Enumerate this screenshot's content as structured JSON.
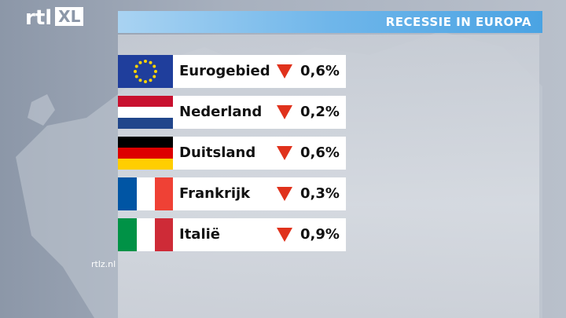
{
  "header": {
    "logo_left": "rtl",
    "logo_right": "XL",
    "title": "RECESSIE IN EUROPA"
  },
  "table": {
    "rows": [
      {
        "country": "Eurogebied",
        "change": "0,6%"
      },
      {
        "country": "Nederland",
        "change": "0,2%"
      },
      {
        "country": "Duitsland",
        "change": "0,6%"
      },
      {
        "country": "Frankrijk",
        "change": "0,3%"
      },
      {
        "country": "Italië",
        "change": "0,9%"
      }
    ]
  },
  "footer": {
    "site": "rtlz.nl"
  }
}
